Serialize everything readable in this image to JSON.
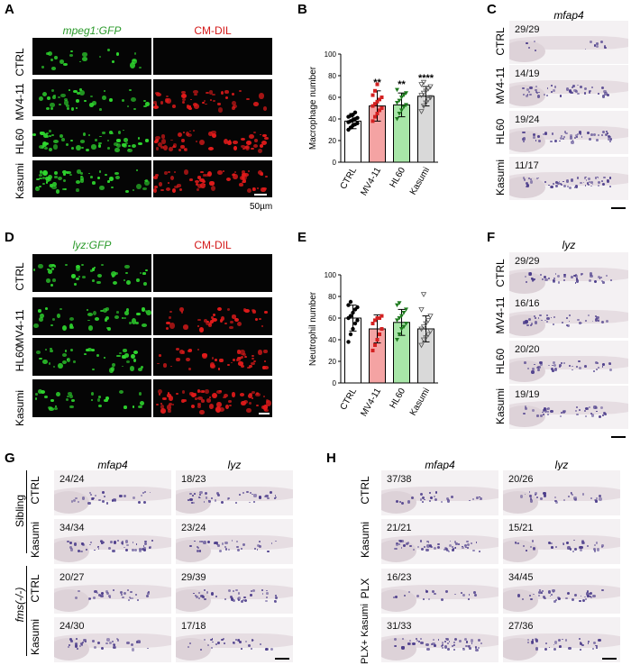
{
  "colors": {
    "gfp": "#2fd82f",
    "dil": "#e21b1b",
    "ctrl_bar": "#ffffff",
    "mv4_bar": "#f4a3a3",
    "hl60_bar": "#a8e6a8",
    "kasumi_bar": "#d9d9d9",
    "stain": "#4b3c8a"
  },
  "panelA": {
    "label": "A",
    "col1": "mpeg1:GFP",
    "col2": "CM-DIL",
    "rows": [
      "CTRL",
      "MV4-11",
      "HL60",
      "Kasumi"
    ],
    "scale": "50µm"
  },
  "panelD": {
    "label": "D",
    "col1": "lyz:GFP",
    "col2": "CM-DIL",
    "rows": [
      "CTRL",
      "MV4-11",
      "HL60",
      "Kasumi"
    ]
  },
  "panelC": {
    "label": "C",
    "gene": "mfap4",
    "rows": [
      "CTRL",
      "MV4-11",
      "HL60",
      "Kasumi"
    ],
    "counts": [
      "29/29",
      "14/19",
      "19/24",
      "11/17"
    ]
  },
  "panelF": {
    "label": "F",
    "gene": "lyz",
    "rows": [
      "CTRL",
      "MV4-11",
      "HL60",
      "Kasumi"
    ],
    "counts": [
      "29/29",
      "16/16",
      "20/20",
      "19/19"
    ]
  },
  "panelG": {
    "label": "G",
    "col1": "mfap4",
    "col2": "lyz",
    "group1": "Sibling",
    "group2": "fms(-/-)",
    "rows": [
      "CTRL",
      "Kasumi",
      "CTRL",
      "Kasumi"
    ],
    "counts_mfap4": [
      "24/24",
      "34/34",
      "20/27",
      "24/30"
    ],
    "counts_lyz": [
      "18/23",
      "23/24",
      "29/39",
      "17/18"
    ]
  },
  "panelH": {
    "label": "H",
    "col1": "mfap4",
    "col2": "lyz",
    "rows": [
      "CTRL",
      "Kasumi",
      "PLX",
      "PLX+ Kasumi"
    ],
    "counts_mfap4": [
      "37/38",
      "21/21",
      "16/23",
      "31/33"
    ],
    "counts_lyz": [
      "20/26",
      "15/21",
      "34/45",
      "27/36"
    ]
  },
  "chart_data": [
    {
      "panel": "B",
      "type": "bar",
      "categories": [
        "CTRL",
        "MV4-11",
        "HL60",
        "Kasumi"
      ],
      "values": [
        38,
        52,
        53,
        61
      ],
      "errors": [
        7,
        14,
        11,
        9
      ],
      "significance": [
        "",
        "**",
        "**",
        "****"
      ],
      "ylabel": "Macrophage number",
      "ylim": [
        0,
        100
      ],
      "yticks": [
        0,
        20,
        40,
        60,
        80,
        100
      ],
      "points": [
        [
          30,
          32,
          34,
          35,
          36,
          37,
          38,
          39,
          40,
          41,
          42,
          43,
          44,
          46
        ],
        [
          38,
          42,
          45,
          48,
          50,
          52,
          54,
          56,
          58,
          60,
          62,
          66,
          72
        ],
        [
          40,
          45,
          48,
          51,
          53,
          55,
          57,
          60,
          62,
          64,
          67
        ],
        [
          47,
          52,
          55,
          58,
          60,
          62,
          64,
          66,
          68,
          70,
          72,
          74
        ]
      ]
    },
    {
      "panel": "E",
      "type": "bar",
      "categories": [
        "CTRL",
        "MV4-11",
        "HL60",
        "Kasumi"
      ],
      "values": [
        60,
        50,
        56,
        50
      ],
      "errors": [
        12,
        13,
        12,
        12
      ],
      "significance": [
        "",
        "",
        "",
        ""
      ],
      "ylabel": "Neutrophil number",
      "ylim": [
        0,
        100
      ],
      "yticks": [
        0,
        20,
        40,
        60,
        80,
        100
      ],
      "points": [
        [
          38,
          45,
          50,
          55,
          58,
          60,
          62,
          65,
          68,
          70,
          72,
          75
        ],
        [
          30,
          35,
          40,
          45,
          50,
          55,
          58,
          60,
          60,
          62
        ],
        [
          40,
          45,
          50,
          52,
          55,
          58,
          60,
          62,
          65,
          68,
          72,
          74
        ],
        [
          35,
          40,
          42,
          45,
          48,
          50,
          52,
          55,
          58,
          62,
          68,
          82
        ]
      ]
    }
  ]
}
